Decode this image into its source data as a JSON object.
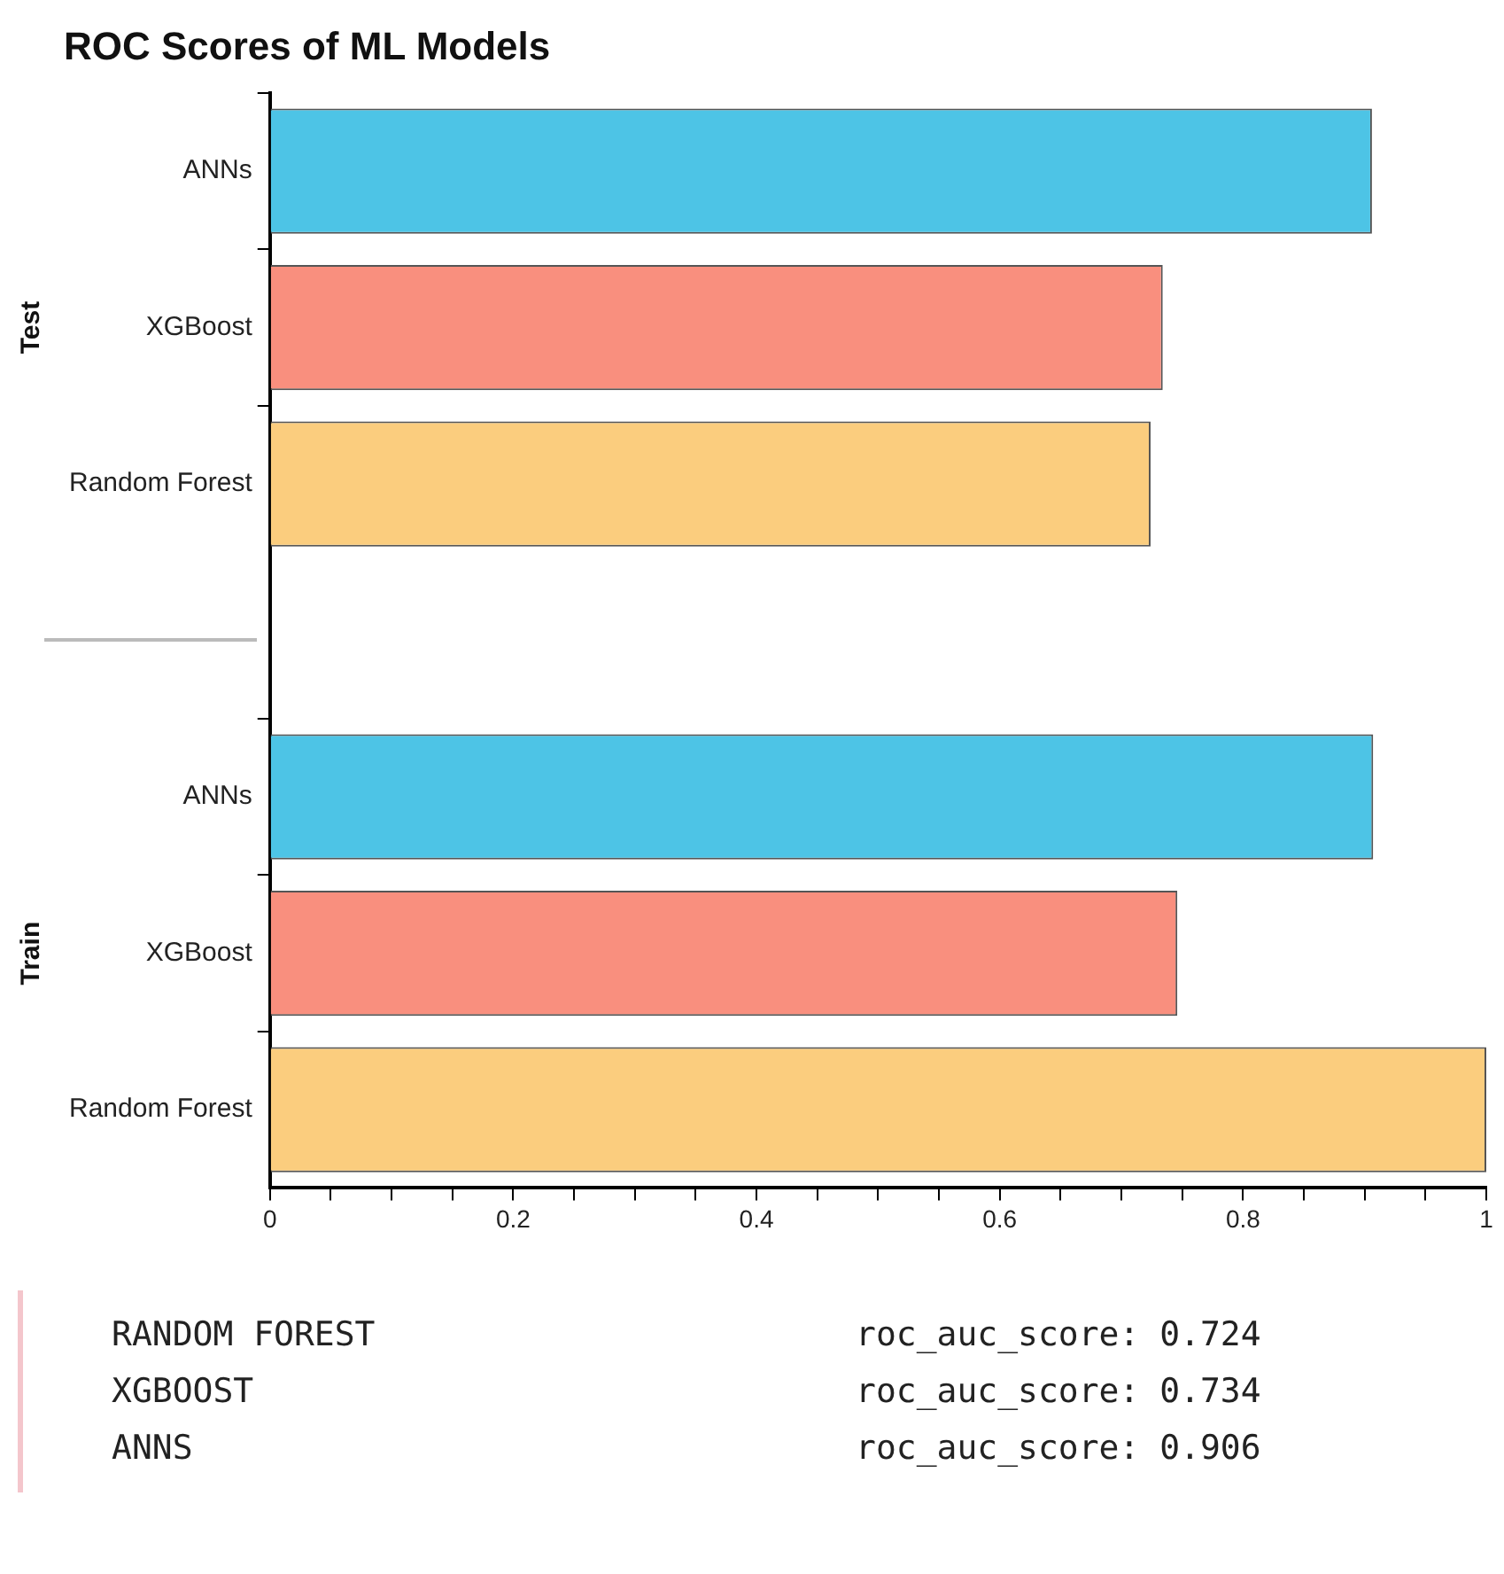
{
  "chart_data": {
    "type": "bar",
    "orientation": "horizontal",
    "title": "ROC Scores of ML Models",
    "categories": [
      "ANNs",
      "XGBoost",
      "Random Forest",
      null,
      "ANNs",
      "XGBoost",
      "Random Forest"
    ],
    "values": [
      0.906,
      0.734,
      0.724,
      null,
      0.907,
      0.746,
      1.0
    ],
    "colors": [
      "#4dc4e6",
      "#f98f7e",
      "#fbcd7e",
      null,
      "#4dc4e6",
      "#f98f7e",
      "#fbcd7e"
    ],
    "xlim": [
      0,
      1
    ],
    "xticks": [
      0,
      {
        "value": 0.05,
        "label": null
      },
      {
        "value": 0.1,
        "label": null
      },
      {
        "value": 0.15,
        "label": null
      },
      0.2,
      {
        "value": 0.25,
        "label": null
      },
      {
        "value": 0.3,
        "label": null
      },
      {
        "value": 0.35,
        "label": null
      },
      0.4,
      {
        "value": 0.45,
        "label": null
      },
      {
        "value": 0.5,
        "label": null
      },
      {
        "value": 0.55,
        "label": null
      },
      0.6,
      {
        "value": 0.65,
        "label": null
      },
      {
        "value": 0.7,
        "label": null
      },
      {
        "value": 0.75,
        "label": null
      },
      0.8,
      {
        "value": 0.85,
        "label": null
      },
      {
        "value": 0.9,
        "label": null
      },
      {
        "value": 0.95,
        "label": null
      },
      1
    ],
    "grid": false,
    "annotations": [
      "Test",
      "Train",
      "RANDOM FOREST",
      "roc_auc_score: 0.724",
      "XGBOOST",
      "roc_auc_score: 0.734",
      "ANNS",
      "roc_auc_score: 0.906"
    ]
  }
}
